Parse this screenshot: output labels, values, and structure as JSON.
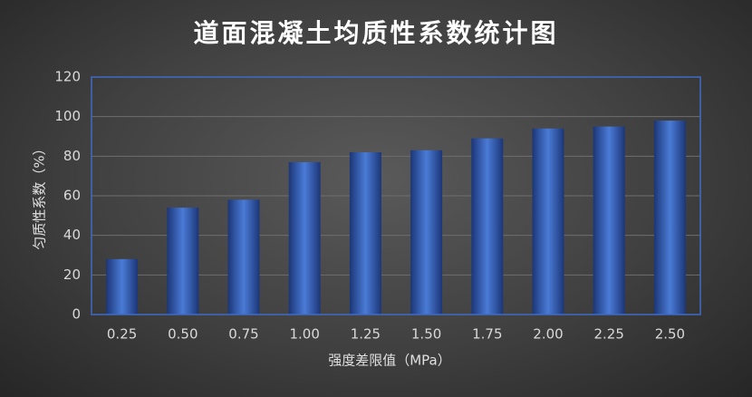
{
  "chart_data": {
    "type": "bar",
    "title": "道面混凝土均质性系数统计图",
    "x_label": "强度差限值（MPa）",
    "y_label": "匀质性系数（%）",
    "categories": [
      "0.25",
      "0.50",
      "0.75",
      "1.00",
      "1.25",
      "1.50",
      "1.75",
      "2.00",
      "2.25",
      "2.50"
    ],
    "values": [
      28,
      54,
      58,
      77,
      82,
      83,
      89,
      94,
      95,
      98
    ],
    "color": "#3f6cc4",
    "ylim": [
      0,
      120
    ],
    "yticks": [
      0,
      20,
      40,
      60,
      80,
      100,
      120
    ],
    "grid": true
  }
}
